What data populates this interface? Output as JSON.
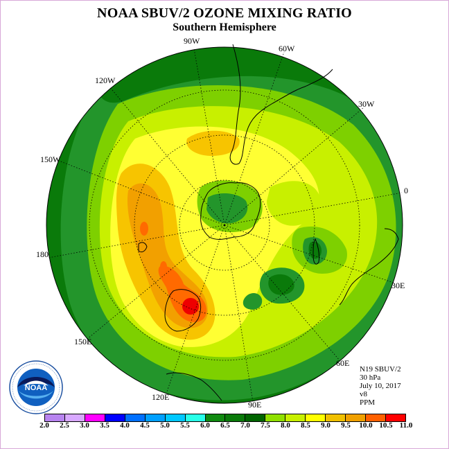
{
  "title": "NOAA SBUV/2 OZONE MIXING RATIO",
  "subtitle": "Southern Hemisphere",
  "longitude_labels": {
    "lon_90w": "90W",
    "lon_60w": "60W",
    "lon_30w": "30W",
    "lon_0": "0",
    "lon_30e": "30E",
    "lon_60e": "60E",
    "lon_90e": "90E",
    "lon_120e": "120E",
    "lon_150e": "150E",
    "lon_180": "180",
    "lon_150w": "150W",
    "lon_120w": "120W"
  },
  "info": {
    "satellite": "N19 SBUV/2",
    "level": "30 hPa",
    "date": "July 10, 2017",
    "version": "v8",
    "units": "PPM"
  },
  "logo": {
    "name": "NOAA",
    "icon": "noaa-logo-icon"
  },
  "colorbar": {
    "ticks": [
      "2.0",
      "2.5",
      "3.0",
      "3.5",
      "4.0",
      "4.5",
      "5.0",
      "5.5",
      "6.0",
      "6.5",
      "7.0",
      "7.5",
      "8.0",
      "8.5",
      "9.0",
      "9.5",
      "10.0",
      "10.5",
      "11.0"
    ],
    "colors": [
      "#b884f0",
      "#d8a8ff",
      "#ff00ff",
      "#0000ff",
      "#0070ff",
      "#00a0ff",
      "#00c8ff",
      "#28ffe8",
      "#108a10",
      "#0a7a0a",
      "#006400",
      "#90e000",
      "#c8f000",
      "#ffff00",
      "#f0c000",
      "#f0a000",
      "#ff6000",
      "#ff0000",
      "#8a4a2a"
    ]
  },
  "map_colors": {
    "level_6_5": "#0a7a0a",
    "level_7_0": "#23952b",
    "level_7_5": "#7ed000",
    "level_8_0": "#c8f000",
    "level_8_5": "#ffff33",
    "level_9_0": "#f7c400",
    "level_9_5": "#f2a000",
    "level_10_0": "#ff6a00",
    "level_10_5": "#ee0000"
  }
}
